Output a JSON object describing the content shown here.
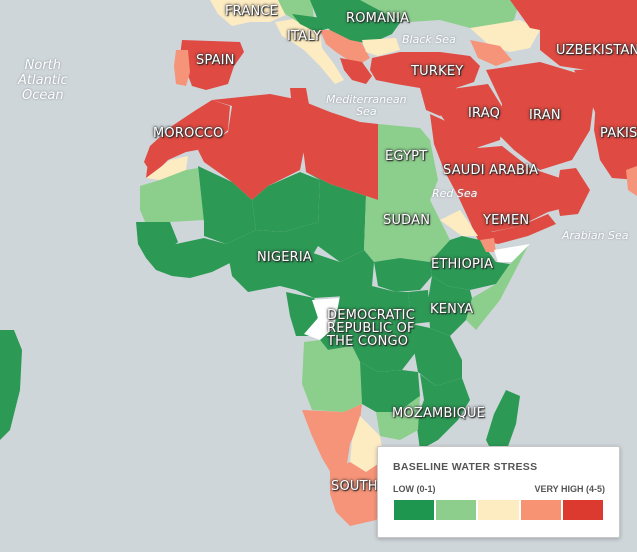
{
  "colors": {
    "water": "#cfd6da",
    "low": "#2c9a55",
    "low_medium": "#8ccf8d",
    "medium_high": "#fdebc2",
    "high": "#f59479",
    "very_high": "#df4a42",
    "no_data": "#ffffff"
  },
  "map": {
    "countries": [
      {
        "name": "FRANCE",
        "stress": "medium_high"
      },
      {
        "name": "ROMANIA",
        "stress": "low"
      },
      {
        "name": "ITALY",
        "stress": "medium_high"
      },
      {
        "name": "SPAIN",
        "stress": "very_high"
      },
      {
        "name": "TURKEY",
        "stress": "very_high"
      },
      {
        "name": "UZBEKISTAN",
        "stress": "very_high"
      },
      {
        "name": "MOROCCO",
        "stress": "very_high"
      },
      {
        "name": "EGYPT",
        "stress": "low_medium"
      },
      {
        "name": "IRAQ",
        "stress": "very_high"
      },
      {
        "name": "IRAN",
        "stress": "very_high"
      },
      {
        "name": "PAKISTAN",
        "stress": "very_high"
      },
      {
        "name": "SAUDI ARABIA",
        "stress": "very_high"
      },
      {
        "name": "YEMEN",
        "stress": "very_high"
      },
      {
        "name": "SUDAN",
        "stress": "low_medium"
      },
      {
        "name": "NIGERIA",
        "stress": "low"
      },
      {
        "name": "ETHIOPIA",
        "stress": "low"
      },
      {
        "name": "KENYA",
        "stress": "low"
      },
      {
        "name": "DEMOCRATIC REPUBLIC OF THE CONGO",
        "stress": "low"
      },
      {
        "name": "MOZAMBIQUE",
        "stress": "low"
      },
      {
        "name": "SOUTH AFRICA",
        "stress": "high"
      }
    ],
    "labels": {
      "france": "FRANCE",
      "romania": "ROMANIA",
      "italy": "ITALY",
      "spain": "SPAIN",
      "turkey": "TURKEY",
      "uzbekistan": "UZBEKISTAN",
      "morocco": "MOROCCO",
      "egypt": "EGYPT",
      "iraq": "IRAQ",
      "iran": "IRAN",
      "pakistan": "PAKIST",
      "saudi_arabia": "SAUDI ARABIA",
      "yemen": "YEMEN",
      "sudan": "SUDAN",
      "nigeria": "NIGERIA",
      "ethiopia": "ETHIOPIA",
      "kenya": "KENYA",
      "drc_line1": "DEMOCRATIC",
      "drc_line2": "REPUBLIC OF",
      "drc_line3": "THE CONGO",
      "mozambique": "MOZAMBIQUE",
      "south_africa": "SOUTH"
    },
    "water_labels": {
      "black_sea": "Black Sea",
      "mediterranean_line1": "Mediterranean",
      "mediterranean_line2": "Sea",
      "red_sea": "Red Sea",
      "arabian_sea": "Arabian Sea",
      "north_atlantic_line1": "North",
      "north_atlantic_line2": "Atlantic",
      "north_atlantic_line3": "Ocean"
    }
  },
  "legend": {
    "title": "BASELINE WATER STRESS",
    "low_label": "LOW (0-1)",
    "high_label": "VERY HIGH (4-5)",
    "swatch_colors": [
      "#1e9650",
      "#8dce8c",
      "#fdebc2",
      "#f79272",
      "#dc3a2e"
    ]
  }
}
